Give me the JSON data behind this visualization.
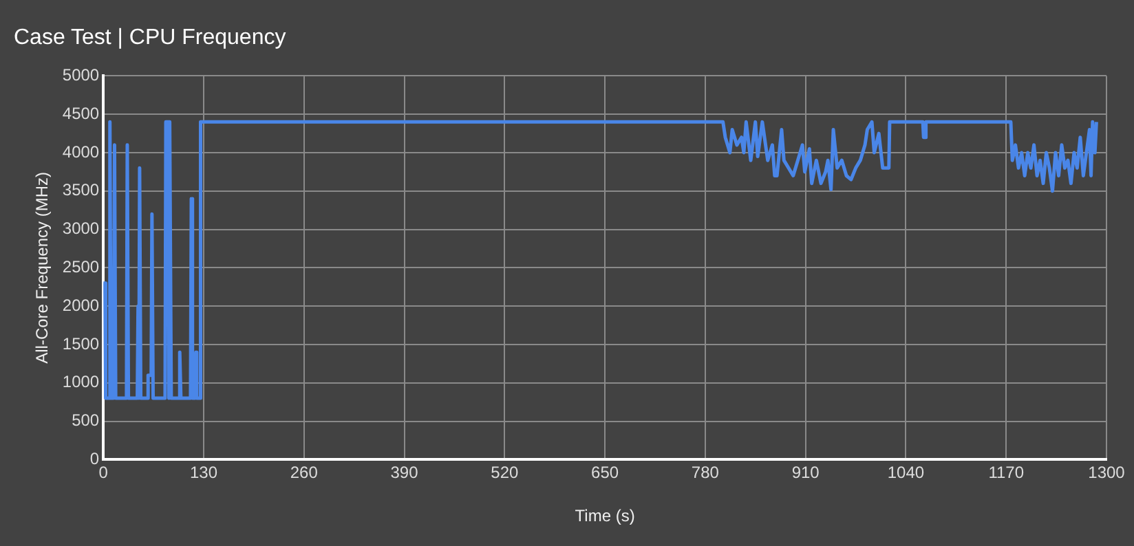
{
  "chart_data": {
    "type": "line",
    "title": "Case Test | CPU Frequency",
    "xlabel": "Time (s)",
    "ylabel": "All-Core Frequency (MHz)",
    "xlim": [
      0,
      1300
    ],
    "xticks": [
      0,
      130,
      260,
      390,
      520,
      650,
      780,
      910,
      1040,
      1170,
      1300
    ],
    "ylim": [
      0,
      5000
    ],
    "yticks": [
      0,
      500,
      1000,
      1500,
      2000,
      2500,
      3000,
      3500,
      4000,
      4500,
      5000
    ],
    "grid": true,
    "legend": false,
    "marker": "none",
    "line_style": "solid",
    "series": [
      {
        "color": "#4a86e8",
        "x": [
          0,
          2,
          3,
          7,
          8.5,
          10,
          13,
          14.5,
          16,
          30,
          31,
          32.5,
          44,
          45,
          46,
          47,
          48.5,
          57,
          58,
          62,
          63,
          64.5,
          80,
          81,
          84,
          85,
          86,
          88,
          98,
          99,
          100.5,
          113,
          114,
          115.5,
          119,
          120,
          121,
          125,
          126,
          803,
          806,
          812,
          815,
          821,
          827,
          830,
          833,
          839,
          845,
          848,
          854,
          861,
          867,
          870,
          873,
          879,
          882,
          888,
          894,
          900,
          906,
          909,
          915,
          918,
          924,
          930,
          936,
          939,
          943,
          946,
          951,
          957,
          963,
          969,
          975,
          981,
          987,
          990,
          996,
          999,
          1005,
          1010,
          1018,
          1019,
          1062,
          1063,
          1065,
          1066,
          1176,
          1178,
          1182,
          1186,
          1190,
          1194,
          1198,
          1202,
          1206,
          1210,
          1214,
          1218,
          1222,
          1226,
          1230,
          1234,
          1238,
          1242,
          1246,
          1250,
          1254,
          1258,
          1262,
          1266,
          1270,
          1274,
          1278,
          1280,
          1282,
          1285,
          1287
        ],
        "values": [
          2300,
          2300,
          800,
          800,
          4400,
          800,
          800,
          4100,
          800,
          800,
          4100,
          800,
          800,
          2000,
          800,
          3800,
          800,
          800,
          1100,
          1100,
          3200,
          800,
          800,
          4400,
          4400,
          800,
          4400,
          800,
          800,
          1400,
          800,
          800,
          3400,
          800,
          800,
          1400,
          800,
          800,
          4400,
          4400,
          4200,
          4000,
          4300,
          4100,
          4200,
          4000,
          4400,
          3900,
          4400,
          3950,
          4400,
          3900,
          4100,
          3700,
          3700,
          4300,
          3900,
          3800,
          3700,
          3900,
          4100,
          3750,
          4050,
          3600,
          3900,
          3600,
          3750,
          3900,
          3520,
          4300,
          3800,
          3900,
          3700,
          3650,
          3800,
          3900,
          4100,
          4300,
          4400,
          4000,
          4250,
          3800,
          3800,
          4400,
          4400,
          4200,
          4200,
          4400,
          4400,
          3900,
          4100,
          3800,
          4000,
          3700,
          4000,
          3800,
          4100,
          3700,
          3900,
          3600,
          4000,
          3800,
          3500,
          4000,
          3700,
          4100,
          3800,
          3900,
          3600,
          4000,
          3800,
          4200,
          3700,
          4000,
          4300,
          3700,
          4400,
          4000,
          4400
        ]
      }
    ]
  }
}
